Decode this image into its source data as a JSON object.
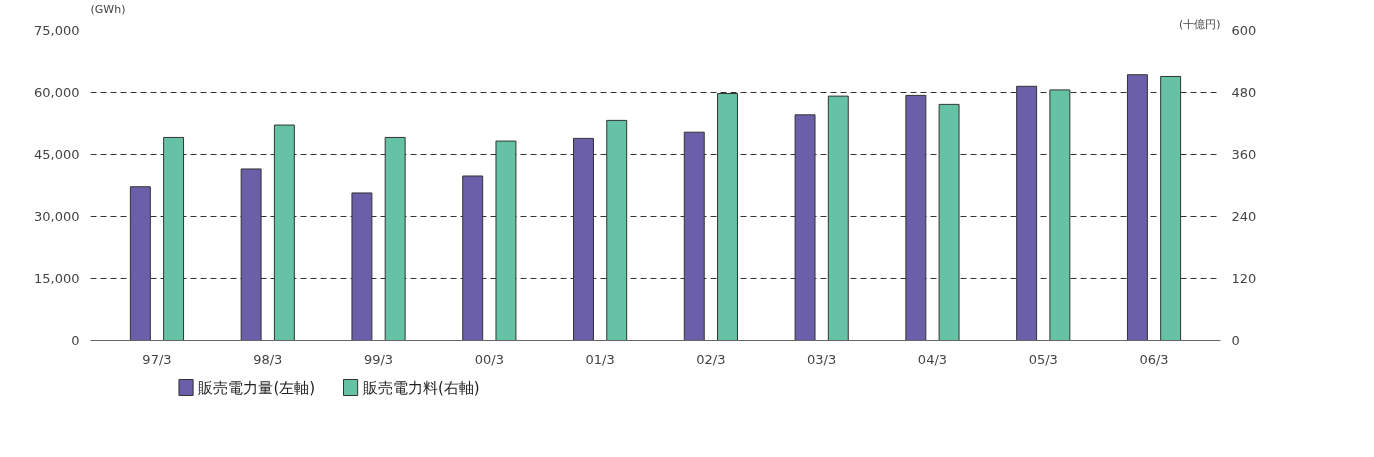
{
  "chart_data": {
    "type": "bar",
    "categories": [
      "97/3",
      "98/3",
      "99/3",
      "00/3",
      "01/3",
      "02/3",
      "03/3",
      "04/3",
      "05/3",
      "06/3"
    ],
    "ylabel": "(GWh)",
    "y2label": "(十億円)",
    "series": [
      {
        "name": "販売電力量(左軸)",
        "color": "#6a5fa8",
        "values": [
          37200,
          41500,
          35700,
          39800,
          48900,
          50400,
          54600,
          59300,
          61500,
          64300
        ]
      },
      {
        "name": "販売電力料(右軸)",
        "color": "#66c2a5",
        "axis": "y2",
        "values": [
          393,
          417,
          393,
          386,
          426,
          478,
          473,
          457,
          485,
          511
        ]
      }
    ],
    "ylim": [
      0,
      75000
    ],
    "yticks": [
      0,
      {
        "value": 15000,
        "label": "15,000"
      },
      {
        "value": 30000,
        "label": "30,000"
      },
      {
        "value": 45000,
        "label": "45,000"
      },
      {
        "value": 60000,
        "label": "60,000"
      },
      {
        "value": 75000,
        "label": "75,000"
      }
    ],
    "y2lim": [
      0,
      600
    ],
    "y2ticks": [
      0,
      120,
      240,
      360,
      480,
      600
    ],
    "grid": "y",
    "legend": "bottom left"
  }
}
